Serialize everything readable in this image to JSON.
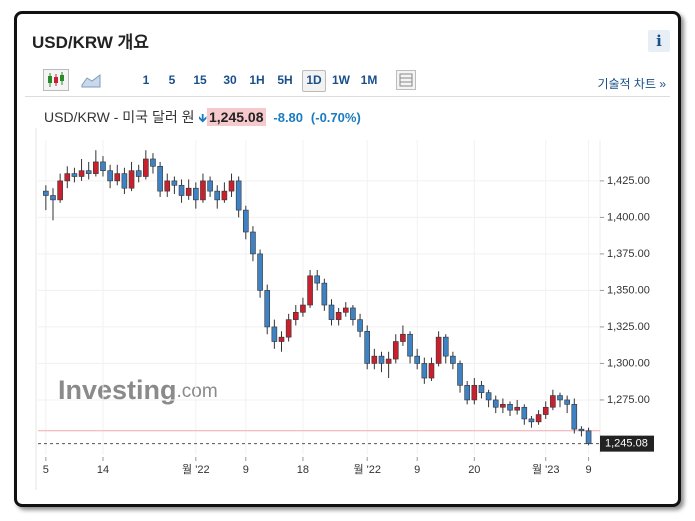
{
  "header": {
    "title": "USD/KRW 개요",
    "info": "i"
  },
  "toolbar": {
    "intervals": [
      "1",
      "5",
      "15",
      "30",
      "1H",
      "5H",
      "1D",
      "1W",
      "1M"
    ],
    "technical_chart": "기술적 차트 »"
  },
  "quote": {
    "name": "USD/KRW - 미국 달러 원",
    "price": "1,245.08",
    "change": "-8.80",
    "change_pct": "(-0.70%)"
  },
  "chart_data": {
    "type": "candlestick",
    "watermark": [
      "Investing",
      ".com"
    ],
    "up_color": "#c8202f",
    "down_color": "#3f82c4",
    "ohlc": [
      [
        1418,
        1422,
        1405,
        1415
      ],
      [
        1415,
        1420,
        1398,
        1412
      ],
      [
        1412,
        1430,
        1410,
        1425
      ],
      [
        1425,
        1435,
        1420,
        1430
      ],
      [
        1430,
        1434,
        1424,
        1428
      ],
      [
        1428,
        1440,
        1425,
        1432
      ],
      [
        1432,
        1438,
        1426,
        1430
      ],
      [
        1430,
        1446,
        1428,
        1438
      ],
      [
        1438,
        1442,
        1428,
        1432
      ],
      [
        1432,
        1436,
        1420,
        1425
      ],
      [
        1425,
        1436,
        1422,
        1430
      ],
      [
        1430,
        1434,
        1416,
        1420
      ],
      [
        1420,
        1438,
        1418,
        1432
      ],
      [
        1432,
        1436,
        1424,
        1428
      ],
      [
        1428,
        1446,
        1426,
        1440
      ],
      [
        1440,
        1444,
        1430,
        1435
      ],
      [
        1435,
        1438,
        1414,
        1418
      ],
      [
        1418,
        1430,
        1414,
        1425
      ],
      [
        1425,
        1428,
        1416,
        1422
      ],
      [
        1422,
        1426,
        1410,
        1415
      ],
      [
        1415,
        1426,
        1412,
        1420
      ],
      [
        1420,
        1424,
        1406,
        1412
      ],
      [
        1412,
        1430,
        1410,
        1425
      ],
      [
        1425,
        1428,
        1414,
        1418
      ],
      [
        1418,
        1422,
        1406,
        1412
      ],
      [
        1412,
        1424,
        1410,
        1418
      ],
      [
        1418,
        1430,
        1414,
        1425
      ],
      [
        1425,
        1428,
        1400,
        1405
      ],
      [
        1405,
        1408,
        1385,
        1390
      ],
      [
        1390,
        1394,
        1370,
        1375
      ],
      [
        1375,
        1378,
        1345,
        1350
      ],
      [
        1350,
        1354,
        1320,
        1325
      ],
      [
        1325,
        1330,
        1310,
        1315
      ],
      [
        1315,
        1322,
        1308,
        1318
      ],
      [
        1318,
        1334,
        1315,
        1330
      ],
      [
        1330,
        1340,
        1326,
        1335
      ],
      [
        1335,
        1345,
        1332,
        1340
      ],
      [
        1340,
        1364,
        1338,
        1360
      ],
      [
        1360,
        1364,
        1350,
        1355
      ],
      [
        1355,
        1358,
        1336,
        1340
      ],
      [
        1340,
        1344,
        1326,
        1330
      ],
      [
        1330,
        1338,
        1326,
        1335
      ],
      [
        1335,
        1342,
        1332,
        1338
      ],
      [
        1338,
        1340,
        1326,
        1330
      ],
      [
        1330,
        1334,
        1318,
        1322
      ],
      [
        1322,
        1326,
        1296,
        1300
      ],
      [
        1300,
        1310,
        1296,
        1305
      ],
      [
        1305,
        1308,
        1294,
        1300
      ],
      [
        1300,
        1308,
        1290,
        1303
      ],
      [
        1303,
        1320,
        1300,
        1315
      ],
      [
        1315,
        1326,
        1312,
        1320
      ],
      [
        1320,
        1322,
        1300,
        1305
      ],
      [
        1305,
        1310,
        1296,
        1300
      ],
      [
        1300,
        1304,
        1286,
        1290
      ],
      [
        1290,
        1304,
        1288,
        1300
      ],
      [
        1300,
        1322,
        1298,
        1318
      ],
      [
        1318,
        1320,
        1300,
        1305
      ],
      [
        1305,
        1308,
        1296,
        1300
      ],
      [
        1300,
        1302,
        1280,
        1285
      ],
      [
        1285,
        1288,
        1272,
        1275
      ],
      [
        1275,
        1290,
        1272,
        1285
      ],
      [
        1285,
        1288,
        1276,
        1280
      ],
      [
        1280,
        1282,
        1270,
        1275
      ],
      [
        1275,
        1278,
        1266,
        1270
      ],
      [
        1270,
        1276,
        1266,
        1272
      ],
      [
        1272,
        1274,
        1264,
        1268
      ],
      [
        1268,
        1275,
        1265,
        1270
      ],
      [
        1270,
        1272,
        1258,
        1262
      ],
      [
        1262,
        1264,
        1256,
        1260
      ],
      [
        1260,
        1268,
        1258,
        1265
      ],
      [
        1265,
        1274,
        1262,
        1270
      ],
      [
        1270,
        1282,
        1268,
        1278
      ],
      [
        1278,
        1280,
        1270,
        1275
      ],
      [
        1275,
        1278,
        1266,
        1272
      ],
      [
        1272,
        1276,
        1252,
        1255
      ],
      [
        1255,
        1257,
        1250,
        1253.88
      ],
      [
        1253.88,
        1256,
        1244,
        1245.08
      ]
    ],
    "xlim": [
      -1.1,
      77.6
    ],
    "xticks": [
      {
        "value": 0,
        "label": "5"
      },
      {
        "value": 8,
        "label": "14"
      },
      {
        "value": 21,
        "label": "월 '22"
      },
      {
        "value": 28,
        "label": "9"
      },
      {
        "value": 36,
        "label": "18"
      },
      {
        "value": 45,
        "label": "월 '22"
      },
      {
        "value": 52,
        "label": "9"
      },
      {
        "value": 60,
        "label": "20"
      },
      {
        "value": 70,
        "label": "월 '23"
      },
      {
        "value": 76,
        "label": "9"
      }
    ],
    "ylim": [
      1237.3,
      1453
    ],
    "yticks": [
      {
        "value": 1275,
        "label": "1,275.00"
      },
      {
        "value": 1300,
        "label": "1,300.00"
      },
      {
        "value": 1325,
        "label": "1,325.00"
      },
      {
        "value": 1350,
        "label": "1,350.00"
      },
      {
        "value": 1375,
        "label": "1,375.00"
      },
      {
        "value": 1400,
        "label": "1,400.00"
      },
      {
        "value": 1425,
        "label": "1,425.00"
      }
    ],
    "prev_close": 1253.88,
    "last": {
      "value": 1245.08,
      "label": "1,245.08"
    },
    "grid": true
  }
}
